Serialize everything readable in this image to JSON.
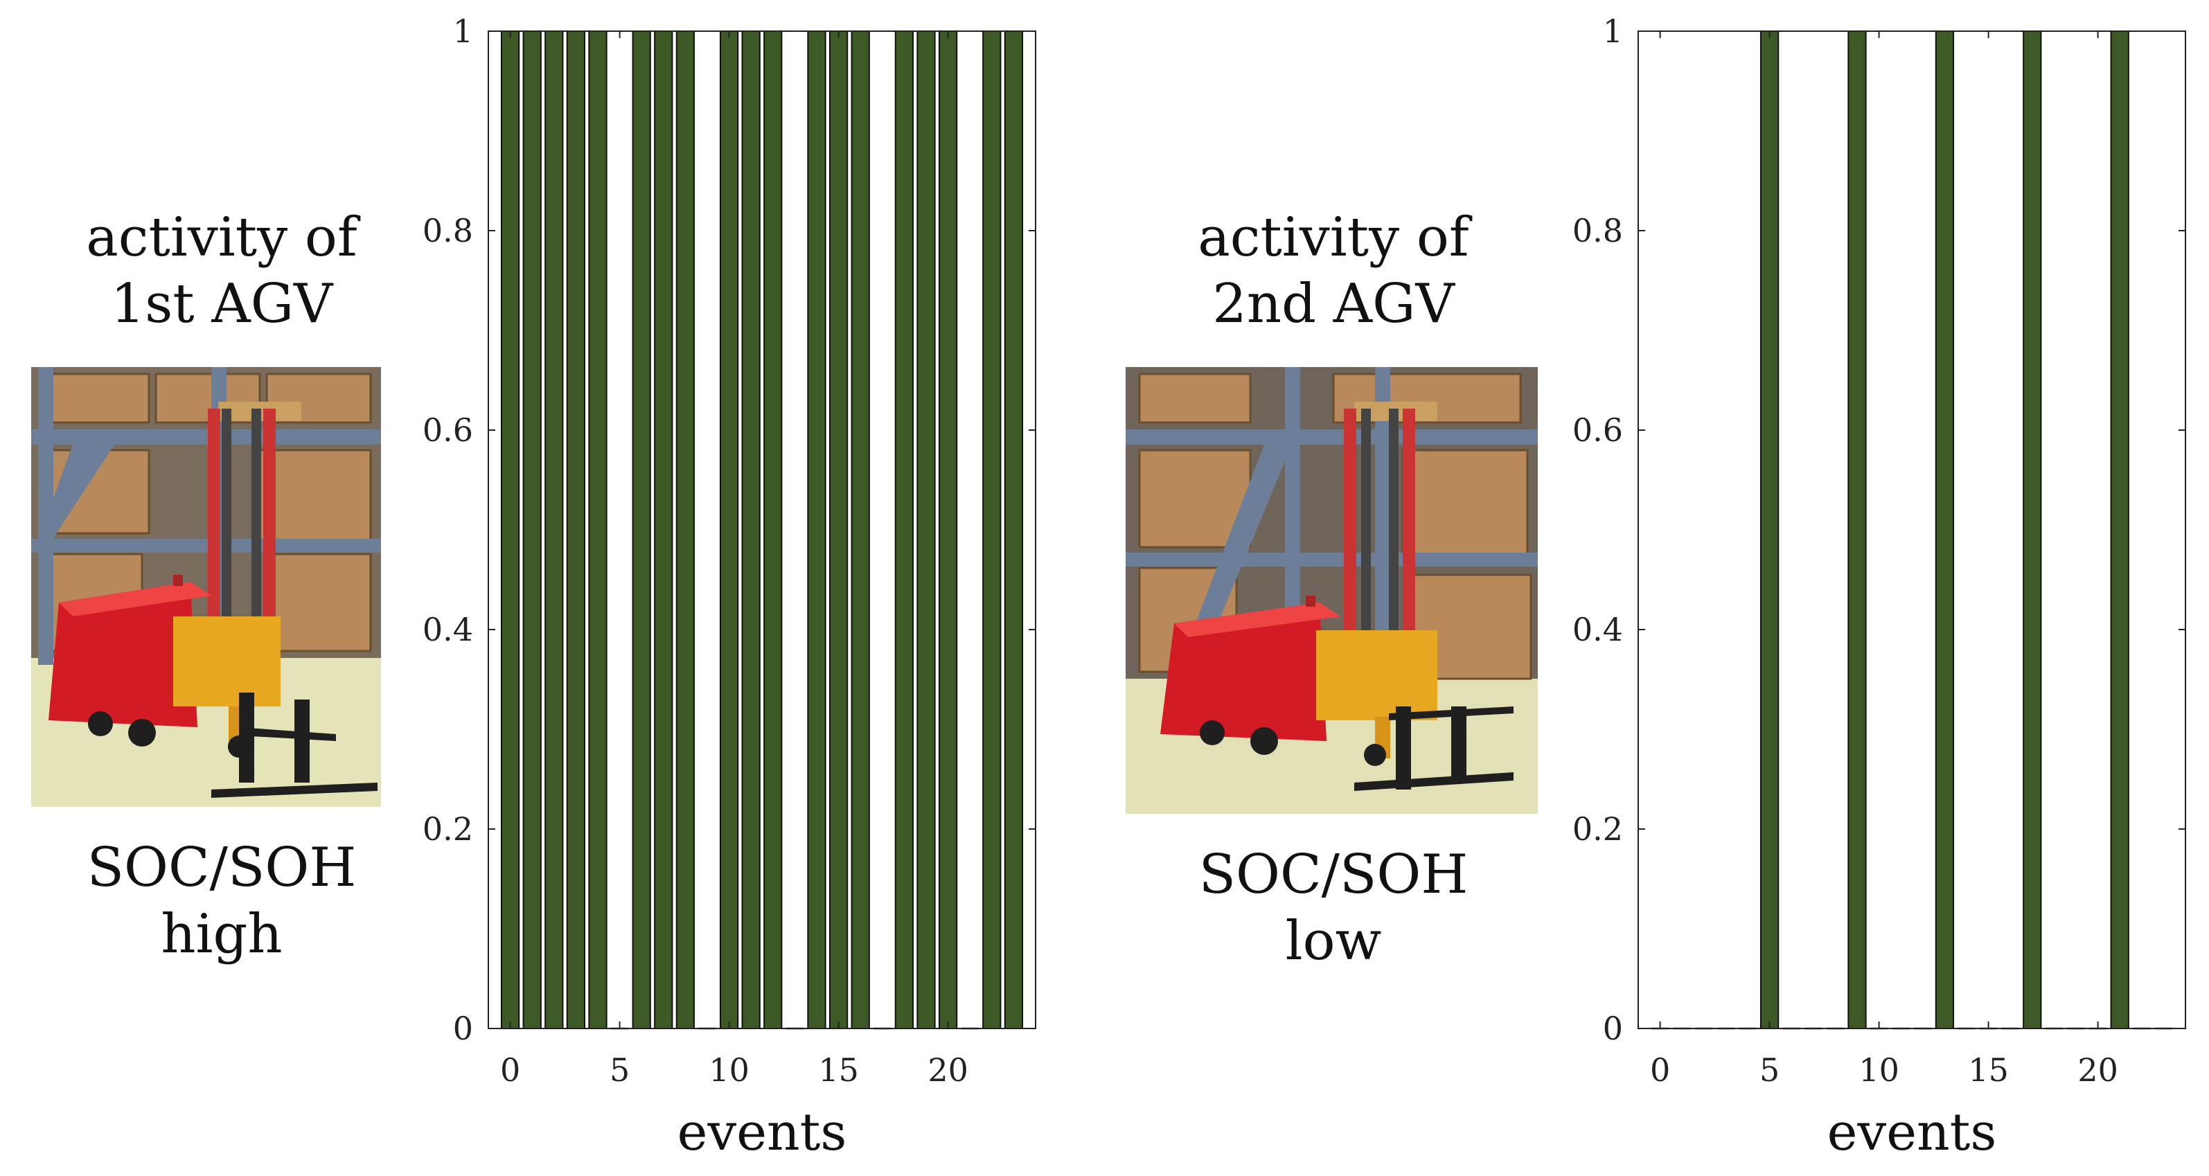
{
  "panels": [
    {
      "caption_top": [
        "activity of",
        "1st AGV"
      ],
      "caption_bottom": [
        "SOC/SOH",
        "high"
      ]
    },
    {
      "caption_top": [
        "activity of",
        "2nd AGV"
      ],
      "caption_bottom": [
        "SOC/SOH",
        "low"
      ]
    }
  ],
  "colors": {
    "bar": "#3d5a26",
    "bar_edge": "#111111",
    "axis": "#222222"
  },
  "chart_data": [
    {
      "type": "bar",
      "xlabel": "events",
      "ylabel": "",
      "x": [
        0,
        1,
        2,
        3,
        4,
        5,
        6,
        7,
        8,
        9,
        10,
        11,
        12,
        13,
        14,
        15,
        16,
        17,
        18,
        19,
        20,
        21,
        22,
        23
      ],
      "values": [
        1,
        1,
        1,
        1,
        1,
        0,
        1,
        1,
        1,
        0,
        1,
        1,
        1,
        0,
        1,
        1,
        1,
        0,
        1,
        1,
        1,
        0,
        1,
        1
      ],
      "xlim": [
        -1,
        24
      ],
      "ylim": [
        0,
        1
      ],
      "xticks": [
        0,
        5,
        10,
        15,
        20
      ],
      "xtick_labels": [
        "0",
        "5",
        "10",
        "15",
        "20"
      ],
      "yticks": [
        0,
        0.2,
        0.4,
        0.6,
        0.8,
        1
      ],
      "ytick_labels": [
        "0",
        "0.2",
        "0.4",
        "0.6",
        "0.8",
        "1"
      ],
      "grid": false
    },
    {
      "type": "bar",
      "xlabel": "events",
      "ylabel": "",
      "x": [
        0,
        1,
        2,
        3,
        4,
        5,
        6,
        7,
        8,
        9,
        10,
        11,
        12,
        13,
        14,
        15,
        16,
        17,
        18,
        19,
        20,
        21,
        22,
        23
      ],
      "values": [
        0,
        0,
        0,
        0,
        0,
        1,
        0,
        0,
        0,
        1,
        0,
        0,
        0,
        1,
        0,
        0,
        0,
        1,
        0,
        0,
        0,
        1,
        0,
        0
      ],
      "xlim": [
        -1,
        24
      ],
      "ylim": [
        0,
        1
      ],
      "xticks": [
        0,
        5,
        10,
        15,
        20
      ],
      "xtick_labels": [
        "0",
        "5",
        "10",
        "15",
        "20"
      ],
      "yticks": [
        0,
        0.2,
        0.4,
        0.6,
        0.8,
        1
      ],
      "ytick_labels": [
        "0",
        "0.2",
        "0.4",
        "0.6",
        "0.8",
        "1"
      ],
      "grid": false
    }
  ]
}
